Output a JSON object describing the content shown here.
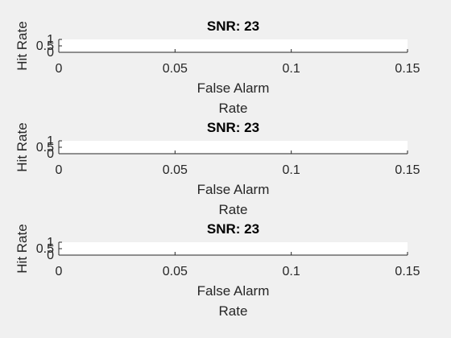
{
  "chart_data": [
    {
      "type": "line",
      "title": "SNR: 23",
      "xlabel_lines": [
        "False Alarm",
        "Rate"
      ],
      "ylabel": "Hit Rate",
      "xlim": [
        0,
        0.15
      ],
      "ylim": [
        0,
        1
      ],
      "xticks": [
        "0",
        "0.05",
        "0.1",
        "0.15"
      ],
      "yticks": [
        "0",
        "0.5",
        "1"
      ],
      "series": []
    },
    {
      "type": "line",
      "title": "SNR: 23",
      "xlabel_lines": [
        "False Alarm",
        "Rate"
      ],
      "ylabel": "Hit Rate",
      "xlim": [
        0,
        0.15
      ],
      "ylim": [
        0,
        1
      ],
      "xticks": [
        "0",
        "0.05",
        "0.1",
        "0.15"
      ],
      "yticks": [
        "0",
        "0.5",
        "1"
      ],
      "series": []
    },
    {
      "type": "line",
      "title": "SNR: 23",
      "xlabel_lines": [
        "False Alarm",
        "Rate"
      ],
      "ylabel": "Hit Rate",
      "xlim": [
        0,
        0.15
      ],
      "ylim": [
        0,
        1
      ],
      "xticks": [
        "0",
        "0.05",
        "0.1",
        "0.15"
      ],
      "yticks": [
        "0",
        "0.5",
        "1"
      ],
      "series": []
    }
  ],
  "colors": {
    "figure_background": "#f0f0f0",
    "axes_background": "#ffffff",
    "axis_line": "#262626"
  }
}
